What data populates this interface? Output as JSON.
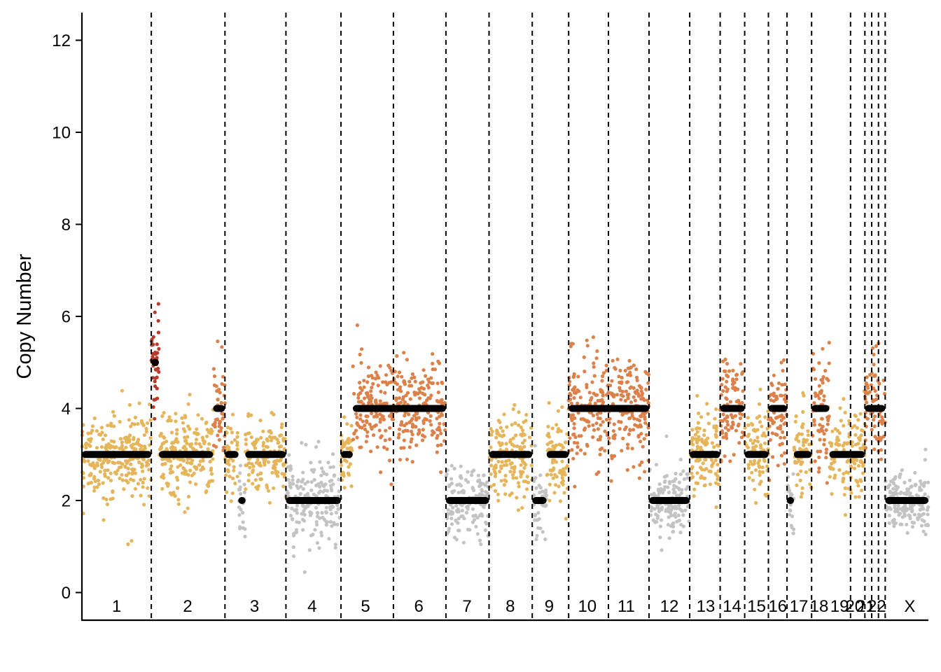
{
  "chart_data": {
    "type": "scatter",
    "title": "",
    "xlabel": "",
    "ylabel": "Copy Number",
    "ylim": [
      -0.6,
      12.6
    ],
    "y_ticks": [
      0,
      2,
      4,
      6,
      8,
      10,
      12
    ],
    "grid": false,
    "legend": "none",
    "colors": {
      "loss": "#c3c3c3",
      "gain": "#e6b55a",
      "amplification": "#dd814a",
      "high_amplification": "#b83a2a",
      "segment": "#000000",
      "boundary": "#000000"
    },
    "chromosomes": [
      {
        "label": "1",
        "start": 0.0,
        "end": 0.082
      },
      {
        "label": "2",
        "start": 0.082,
        "end": 0.169
      },
      {
        "label": "3",
        "start": 0.169,
        "end": 0.241
      },
      {
        "label": "4",
        "start": 0.241,
        "end": 0.306
      },
      {
        "label": "5",
        "start": 0.306,
        "end": 0.368
      },
      {
        "label": "6",
        "start": 0.368,
        "end": 0.43
      },
      {
        "label": "7",
        "start": 0.43,
        "end": 0.481
      },
      {
        "label": "8",
        "start": 0.481,
        "end": 0.532
      },
      {
        "label": "9",
        "start": 0.532,
        "end": 0.575
      },
      {
        "label": "10",
        "start": 0.575,
        "end": 0.622
      },
      {
        "label": "11",
        "start": 0.622,
        "end": 0.67
      },
      {
        "label": "12",
        "start": 0.67,
        "end": 0.718
      },
      {
        "label": "13",
        "start": 0.718,
        "end": 0.754
      },
      {
        "label": "14",
        "start": 0.754,
        "end": 0.783
      },
      {
        "label": "15",
        "start": 0.783,
        "end": 0.811
      },
      {
        "label": "16",
        "start": 0.811,
        "end": 0.833
      },
      {
        "label": "17",
        "start": 0.833,
        "end": 0.862
      },
      {
        "label": "18",
        "start": 0.862,
        "end": 0.908
      },
      {
        "label": "19",
        "start": 0.908,
        "end": 0.925
      },
      {
        "label": "20",
        "start": 0.925,
        "end": 0.933
      },
      {
        "label": "21",
        "start": 0.933,
        "end": 0.941
      },
      {
        "label": "22",
        "start": 0.941,
        "end": 0.949
      },
      {
        "label": "X",
        "start": 0.949,
        "end": 1.0
      }
    ],
    "chromosome_labels": [
      {
        "text": "1",
        "x": 0.041
      },
      {
        "text": "2",
        "x": 0.125
      },
      {
        "text": "3",
        "x": 0.204
      },
      {
        "text": "4",
        "x": 0.272
      },
      {
        "text": "5",
        "x": 0.335
      },
      {
        "text": "6",
        "x": 0.398
      },
      {
        "text": "7",
        "x": 0.455
      },
      {
        "text": "8",
        "x": 0.506
      },
      {
        "text": "9",
        "x": 0.552
      },
      {
        "text": "10",
        "x": 0.597
      },
      {
        "text": "11",
        "x": 0.643
      },
      {
        "text": "12",
        "x": 0.694
      },
      {
        "text": "13",
        "x": 0.737
      },
      {
        "text": "14",
        "x": 0.768
      },
      {
        "text": "15",
        "x": 0.797
      },
      {
        "text": "16",
        "x": 0.822
      },
      {
        "text": "17",
        "x": 0.847
      },
      {
        "text": "18",
        "x": 0.871
      },
      {
        "text": "19",
        "x": 0.895
      },
      {
        "text": "20",
        "x": 0.913
      },
      {
        "text": "21",
        "x": 0.926
      },
      {
        "text": "22",
        "x": 0.939
      },
      {
        "text": "X",
        "x": 0.978
      }
    ],
    "segments": [
      {
        "x_start": 0.0,
        "x_end": 0.082,
        "cn": 3
      },
      {
        "x_start": 0.082,
        "x_end": 0.091,
        "cn": 5
      },
      {
        "x_start": 0.091,
        "x_end": 0.155,
        "cn": 3
      },
      {
        "x_start": 0.155,
        "x_end": 0.169,
        "cn": 4
      },
      {
        "x_start": 0.169,
        "x_end": 0.185,
        "cn": 3
      },
      {
        "x_start": 0.185,
        "x_end": 0.193,
        "cn": 2
      },
      {
        "x_start": 0.193,
        "x_end": 0.241,
        "cn": 3
      },
      {
        "x_start": 0.241,
        "x_end": 0.306,
        "cn": 2
      },
      {
        "x_start": 0.306,
        "x_end": 0.32,
        "cn": 3
      },
      {
        "x_start": 0.32,
        "x_end": 0.43,
        "cn": 4
      },
      {
        "x_start": 0.43,
        "x_end": 0.481,
        "cn": 2
      },
      {
        "x_start": 0.481,
        "x_end": 0.532,
        "cn": 3
      },
      {
        "x_start": 0.532,
        "x_end": 0.549,
        "cn": 2
      },
      {
        "x_start": 0.549,
        "x_end": 0.575,
        "cn": 3
      },
      {
        "x_start": 0.575,
        "x_end": 0.67,
        "cn": 4
      },
      {
        "x_start": 0.67,
        "x_end": 0.718,
        "cn": 2
      },
      {
        "x_start": 0.718,
        "x_end": 0.754,
        "cn": 3
      },
      {
        "x_start": 0.754,
        "x_end": 0.783,
        "cn": 4
      },
      {
        "x_start": 0.783,
        "x_end": 0.811,
        "cn": 3
      },
      {
        "x_start": 0.811,
        "x_end": 0.833,
        "cn": 4
      },
      {
        "x_start": 0.833,
        "x_end": 0.841,
        "cn": 2
      },
      {
        "x_start": 0.841,
        "x_end": 0.862,
        "cn": 3
      },
      {
        "x_start": 0.862,
        "x_end": 0.883,
        "cn": 4
      },
      {
        "x_start": 0.883,
        "x_end": 0.925,
        "cn": 3
      },
      {
        "x_start": 0.925,
        "x_end": 0.949,
        "cn": 4
      },
      {
        "x_start": 0.949,
        "x_end": 1.0,
        "cn": 2
      }
    ],
    "point_groups": [
      {
        "x_start": 0.0,
        "x_end": 0.082,
        "cn": 3,
        "spread": 0.75,
        "n": 260,
        "color": "gain"
      },
      {
        "x_start": 0.082,
        "x_end": 0.091,
        "cn": 5,
        "spread": 0.85,
        "n": 40,
        "color": "high_amplification"
      },
      {
        "x_start": 0.091,
        "x_end": 0.155,
        "cn": 3,
        "spread": 0.75,
        "n": 200,
        "color": "gain"
      },
      {
        "x_start": 0.155,
        "x_end": 0.169,
        "cn": 4,
        "spread": 0.85,
        "n": 45,
        "color": "amplification"
      },
      {
        "x_start": 0.169,
        "x_end": 0.185,
        "cn": 3,
        "spread": 0.65,
        "n": 45,
        "color": "gain"
      },
      {
        "x_start": 0.185,
        "x_end": 0.193,
        "cn": 2,
        "spread": 0.6,
        "n": 25,
        "color": "loss"
      },
      {
        "x_start": 0.193,
        "x_end": 0.241,
        "cn": 3,
        "spread": 0.7,
        "n": 140,
        "color": "gain"
      },
      {
        "x_start": 0.241,
        "x_end": 0.306,
        "cn": 2,
        "spread": 0.65,
        "n": 190,
        "color": "loss"
      },
      {
        "x_start": 0.306,
        "x_end": 0.32,
        "cn": 3,
        "spread": 0.7,
        "n": 40,
        "color": "gain"
      },
      {
        "x_start": 0.32,
        "x_end": 0.43,
        "cn": 4,
        "spread": 0.85,
        "n": 330,
        "color": "amplification"
      },
      {
        "x_start": 0.43,
        "x_end": 0.481,
        "cn": 2,
        "spread": 0.65,
        "n": 150,
        "color": "loss"
      },
      {
        "x_start": 0.481,
        "x_end": 0.532,
        "cn": 3,
        "spread": 0.7,
        "n": 150,
        "color": "gain"
      },
      {
        "x_start": 0.532,
        "x_end": 0.549,
        "cn": 2,
        "spread": 0.6,
        "n": 45,
        "color": "loss"
      },
      {
        "x_start": 0.549,
        "x_end": 0.575,
        "cn": 3,
        "spread": 0.7,
        "n": 70,
        "color": "gain"
      },
      {
        "x_start": 0.575,
        "x_end": 0.67,
        "cn": 4,
        "spread": 0.95,
        "n": 300,
        "color": "amplification"
      },
      {
        "x_start": 0.67,
        "x_end": 0.718,
        "cn": 2,
        "spread": 0.6,
        "n": 150,
        "color": "loss"
      },
      {
        "x_start": 0.718,
        "x_end": 0.754,
        "cn": 3,
        "spread": 0.75,
        "n": 110,
        "color": "gain"
      },
      {
        "x_start": 0.754,
        "x_end": 0.783,
        "cn": 4,
        "spread": 0.9,
        "n": 90,
        "color": "amplification"
      },
      {
        "x_start": 0.783,
        "x_end": 0.811,
        "cn": 3,
        "spread": 0.8,
        "n": 80,
        "color": "gain"
      },
      {
        "x_start": 0.811,
        "x_end": 0.833,
        "cn": 4,
        "spread": 0.95,
        "n": 70,
        "color": "amplification"
      },
      {
        "x_start": 0.833,
        "x_end": 0.841,
        "cn": 2,
        "spread": 0.6,
        "n": 25,
        "color": "loss"
      },
      {
        "x_start": 0.841,
        "x_end": 0.862,
        "cn": 3,
        "spread": 0.75,
        "n": 60,
        "color": "gain"
      },
      {
        "x_start": 0.862,
        "x_end": 0.883,
        "cn": 4,
        "spread": 0.9,
        "n": 70,
        "color": "amplification"
      },
      {
        "x_start": 0.883,
        "x_end": 0.925,
        "cn": 3,
        "spread": 0.8,
        "n": 120,
        "color": "gain"
      },
      {
        "x_start": 0.925,
        "x_end": 0.949,
        "cn": 4,
        "spread": 1.0,
        "n": 70,
        "color": "amplification"
      },
      {
        "x_start": 0.949,
        "x_end": 1.0,
        "cn": 2,
        "spread": 0.55,
        "n": 170,
        "color": "loss"
      }
    ]
  }
}
